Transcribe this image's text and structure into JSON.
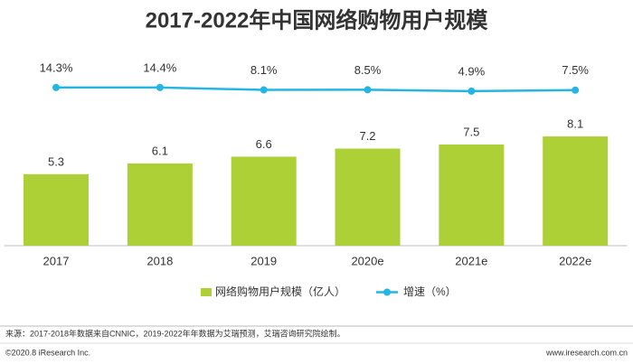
{
  "chart_data": {
    "type": "bar_line",
    "title": "2017-2022年中国网络购物用户规模",
    "categories": [
      "2017",
      "2018",
      "2019",
      "2020e",
      "2021e",
      "2022e"
    ],
    "series": [
      {
        "name": "网络购物用户规模（亿人）",
        "type": "bar",
        "color": "#acd035",
        "values": [
          5.3,
          6.1,
          6.6,
          7.2,
          7.5,
          8.1
        ]
      },
      {
        "name": "增速（%）",
        "type": "line",
        "axis": "y2",
        "color": "#25b5e3",
        "values": [
          14.3,
          14.4,
          8.1,
          8.5,
          4.9,
          7.5
        ],
        "value_labels": [
          "14.3%",
          "14.4%",
          "8.1%",
          "8.5%",
          "4.9%",
          "7.5%"
        ]
      }
    ],
    "ylim": [
      0,
      14.2
    ],
    "y2lim": [
      -397,
      101
    ],
    "source": "来源：2017-2018年数据来自CNNIC，2019-2022年年数据为艾瑞预测，艾瑞咨询研究院绘制。",
    "copyright": "©2020.8 iResearch Inc.",
    "website": "www.iresearch.com.cn"
  }
}
